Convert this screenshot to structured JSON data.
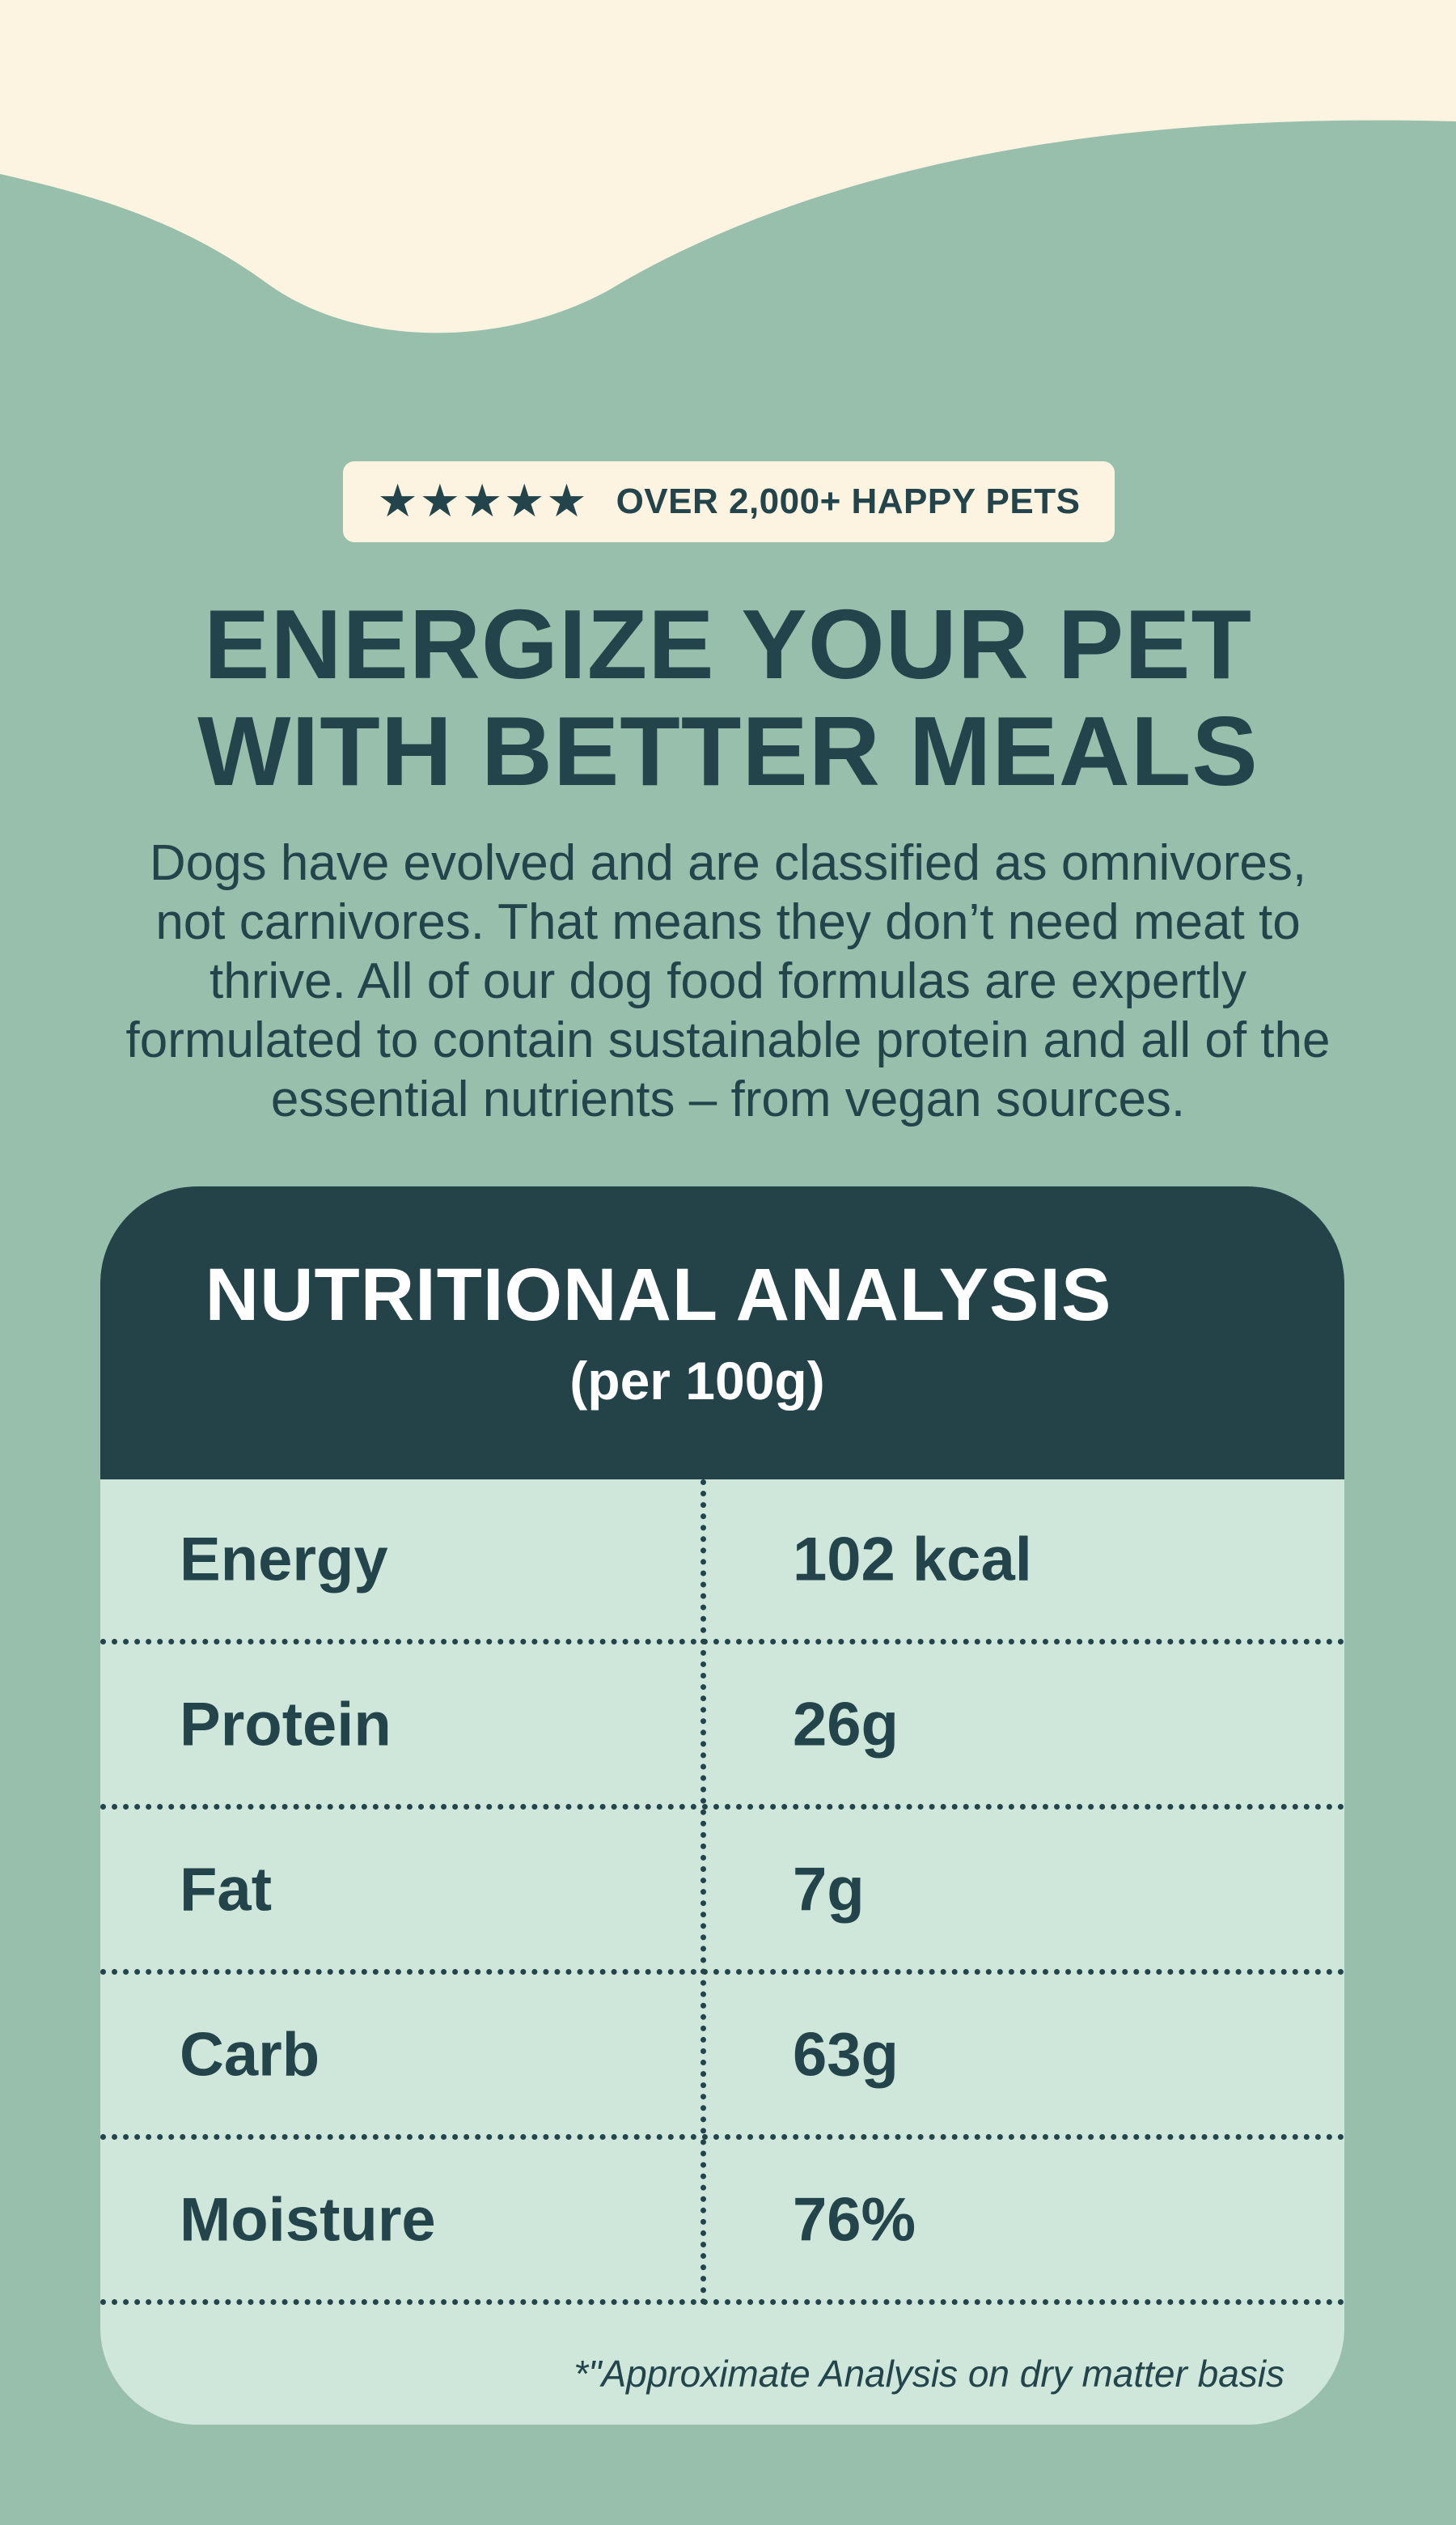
{
  "badge": {
    "stars": "★★★★★",
    "text": "OVER 2,000+ HAPPY PETS",
    "rating_stars": 5
  },
  "headline": {
    "line1": "ENERGIZE YOUR PET",
    "line2": "WITH BETTER MEALS"
  },
  "intro": {
    "line1": "Dogs have evolved and are classified as omnivores,",
    "line2": "not carnivores. That means they don’t need meat to",
    "line3": "thrive. All of our dog food formulas are expertly",
    "line4": "formulated to contain sustainable protein and all of the",
    "line5": "essential nutrients – from vegan sources."
  },
  "nutrition": {
    "title": "NUTRITIONAL ANALYSIS",
    "subtitle": "(per 100g)",
    "rows": [
      {
        "label": "Energy",
        "value": "102 kcal"
      },
      {
        "label": "Protein",
        "value": "26g"
      },
      {
        "label": "Fat",
        "value": "7g"
      },
      {
        "label": "Carb",
        "value": "63g"
      },
      {
        "label": "Moisture",
        "value": "76%"
      }
    ],
    "footnote": "*\"Approximate Analysis on dry matter basis"
  },
  "colors": {
    "background": "#97bfac",
    "cream": "#fdf3e1",
    "dark": "#234349",
    "table_bg": "#cfe6da"
  },
  "icons": {
    "rating": "star-icon"
  }
}
